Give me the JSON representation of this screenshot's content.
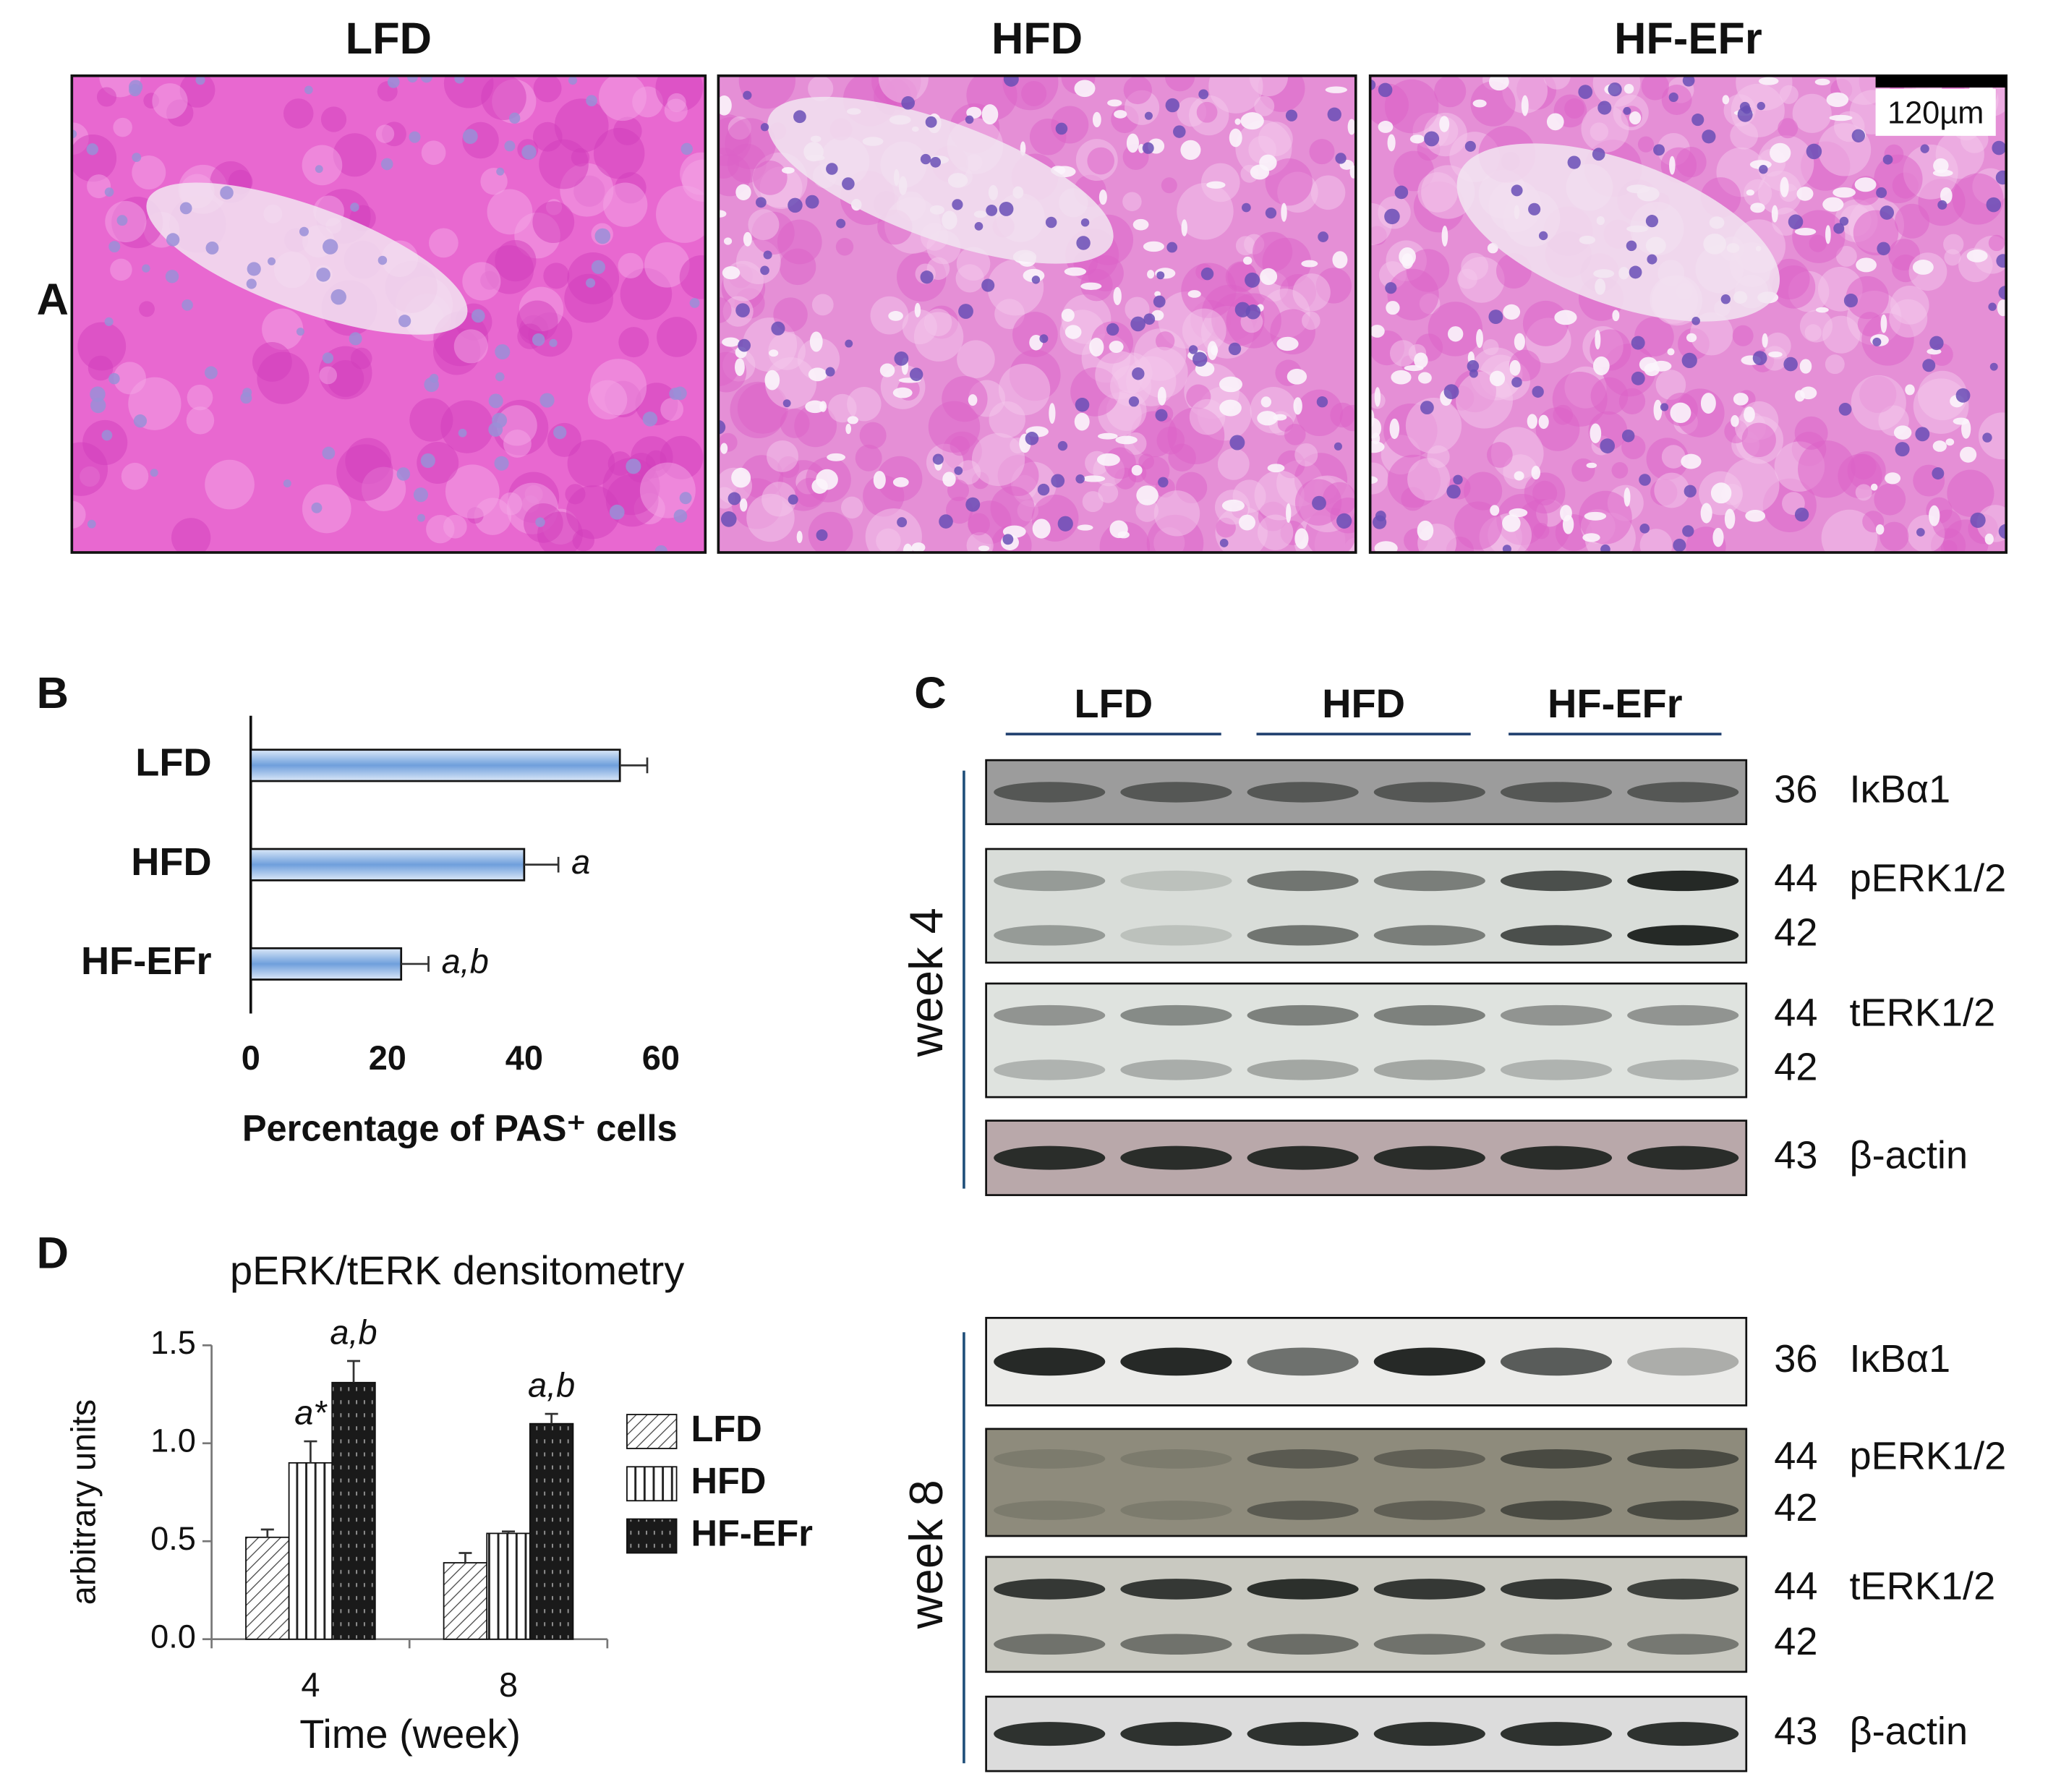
{
  "panel_a": {
    "label": "A",
    "titles": [
      "LFD",
      "HFD",
      "HF-EFr"
    ],
    "scale_bar": "120µm"
  },
  "chart_data": [
    {
      "type": "hbar",
      "panel": "B",
      "categories": [
        "LFD",
        "HFD",
        "HF-EFr"
      ],
      "values": [
        54,
        40,
        22
      ],
      "errors": [
        4,
        5,
        4
      ],
      "annotations": [
        null,
        "a",
        "a,b"
      ],
      "xlabel": "Percentage of PAS⁺ cells",
      "xlim": [
        0,
        60
      ],
      "xticks": [
        0,
        20,
        40,
        60
      ],
      "color": "#8fb4e3"
    },
    {
      "type": "bar",
      "panel": "D",
      "title": "pERK/tERK densitometry",
      "ylabel": "arbitrary units",
      "xlabel": "Time (week)",
      "categories": [
        "4",
        "8"
      ],
      "ylim": [
        0,
        1.5
      ],
      "yticks": [
        {
          "value": 0,
          "label": "0.0"
        },
        {
          "value": 0.5,
          "label": "0.5"
        },
        {
          "value": 1,
          "label": "1.0"
        },
        {
          "value": 1.5,
          "label": "1.5"
        }
      ],
      "series": [
        {
          "name": "LFD",
          "pattern": "diagonal",
          "values": [
            0.52,
            0.39
          ],
          "errors": [
            0.04,
            0.05
          ]
        },
        {
          "name": "HFD",
          "pattern": "vertical",
          "values": [
            0.9,
            0.54
          ],
          "errors": [
            0.11,
            0.01
          ],
          "annotations": [
            "a*",
            null
          ]
        },
        {
          "name": "HF-EFr",
          "pattern": "dots",
          "values": [
            1.31,
            1.1
          ],
          "errors": [
            0.11,
            0.05
          ],
          "annotations": [
            "a,b",
            "a,b"
          ]
        }
      ]
    }
  ],
  "panel_c": {
    "label": "C",
    "groups": [
      "LFD",
      "HFD",
      "HF-EFr"
    ],
    "blocks": [
      {
        "label": "week 4",
        "rows": [
          {
            "mw": [
              "36"
            ],
            "name": "IκBα1"
          },
          {
            "mw": [
              "44",
              "42"
            ],
            "name": "pERK1/2"
          },
          {
            "mw": [
              "44",
              "42"
            ],
            "name": "tERK1/2"
          },
          {
            "mw": [
              "43"
            ],
            "name": "β-actin"
          }
        ]
      },
      {
        "label": "week 8",
        "rows": [
          {
            "mw": [
              "36"
            ],
            "name": "IκBα1"
          },
          {
            "mw": [
              "44",
              "42"
            ],
            "name": "pERK1/2"
          },
          {
            "mw": [
              "44",
              "42"
            ],
            "name": "tERK1/2"
          },
          {
            "mw": [
              "43"
            ],
            "name": "β-actin"
          }
        ]
      }
    ]
  }
}
